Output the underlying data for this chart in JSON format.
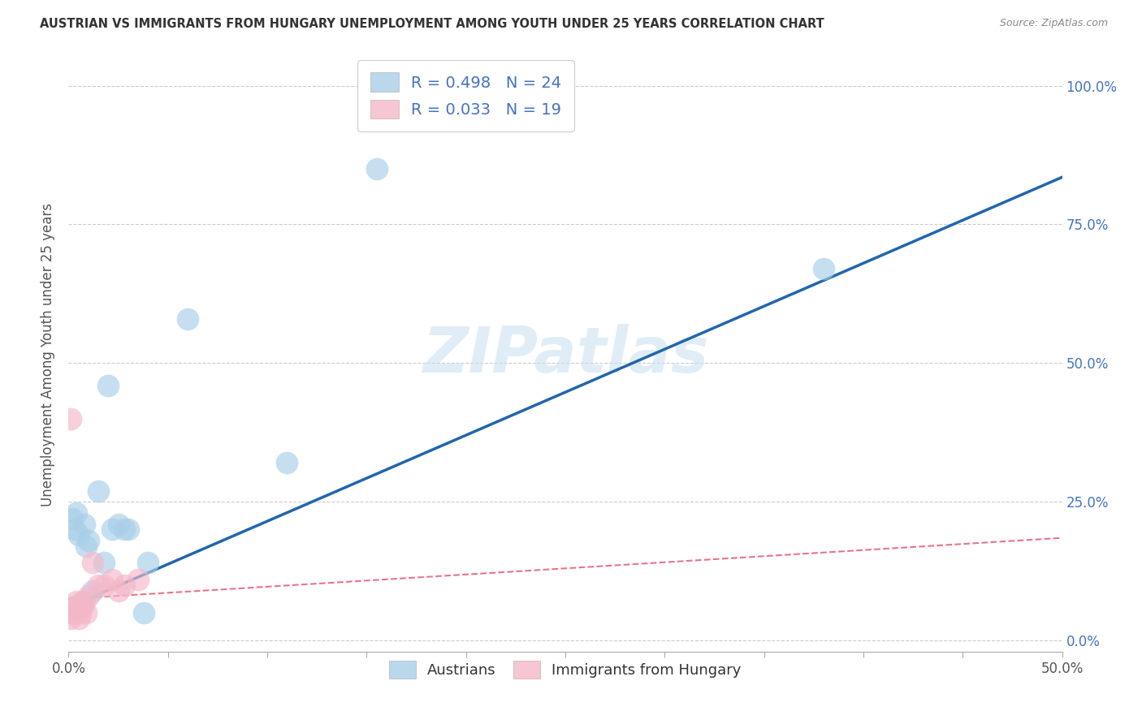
{
  "title": "AUSTRIAN VS IMMIGRANTS FROM HUNGARY UNEMPLOYMENT AMONG YOUTH UNDER 25 YEARS CORRELATION CHART",
  "source": "Source: ZipAtlas.com",
  "ylabel": "Unemployment Among Youth under 25 years",
  "xlim": [
    0.0,
    0.5
  ],
  "ylim": [
    -0.02,
    1.05
  ],
  "legend_label1": "R = 0.498   N = 24",
  "legend_label2": "R = 0.033   N = 19",
  "legend_bottom1": "Austrians",
  "legend_bottom2": "Immigrants from Hungary",
  "blue_color": "#a8cfe8",
  "pink_color": "#f4b8c8",
  "blue_line_color": "#2166ac",
  "pink_line_color": "#e8748a",
  "watermark": "ZIPatlas",
  "austrians_x": [
    0.001,
    0.002,
    0.003,
    0.004,
    0.005,
    0.006,
    0.007,
    0.008,
    0.009,
    0.01,
    0.012,
    0.015,
    0.018,
    0.02,
    0.022,
    0.025,
    0.028,
    0.03,
    0.038,
    0.04,
    0.06,
    0.11,
    0.155,
    0.38
  ],
  "austrians_y": [
    0.05,
    0.22,
    0.2,
    0.23,
    0.19,
    0.06,
    0.07,
    0.21,
    0.17,
    0.18,
    0.09,
    0.27,
    0.14,
    0.46,
    0.2,
    0.21,
    0.2,
    0.2,
    0.05,
    0.14,
    0.58,
    0.32,
    0.85,
    0.67
  ],
  "hungary_x": [
    0.001,
    0.001,
    0.002,
    0.003,
    0.004,
    0.005,
    0.006,
    0.007,
    0.008,
    0.009,
    0.01,
    0.012,
    0.015,
    0.018,
    0.022,
    0.025,
    0.028,
    0.035,
    0.001
  ],
  "hungary_y": [
    0.04,
    0.06,
    0.05,
    0.06,
    0.07,
    0.04,
    0.05,
    0.06,
    0.07,
    0.05,
    0.08,
    0.14,
    0.1,
    0.1,
    0.11,
    0.09,
    0.1,
    0.11,
    0.4
  ],
  "blue_slope": 1.55,
  "blue_intercept": 0.06,
  "pink_slope": 0.22,
  "pink_intercept": 0.075,
  "ytick_vals": [
    0.0,
    0.25,
    0.5,
    0.75,
    1.0
  ],
  "ytick_labels": [
    "0.0%",
    "25.0%",
    "50.0%",
    "75.0%",
    "100.0%"
  ],
  "xtick_vals": [
    0.0,
    0.05,
    0.1,
    0.15,
    0.2,
    0.25,
    0.3,
    0.35,
    0.4,
    0.45,
    0.5
  ],
  "xtick_show": [
    "0.0%",
    "",
    "",
    "",
    "",
    "",
    "",
    "",
    "",
    "",
    "50.0%"
  ]
}
